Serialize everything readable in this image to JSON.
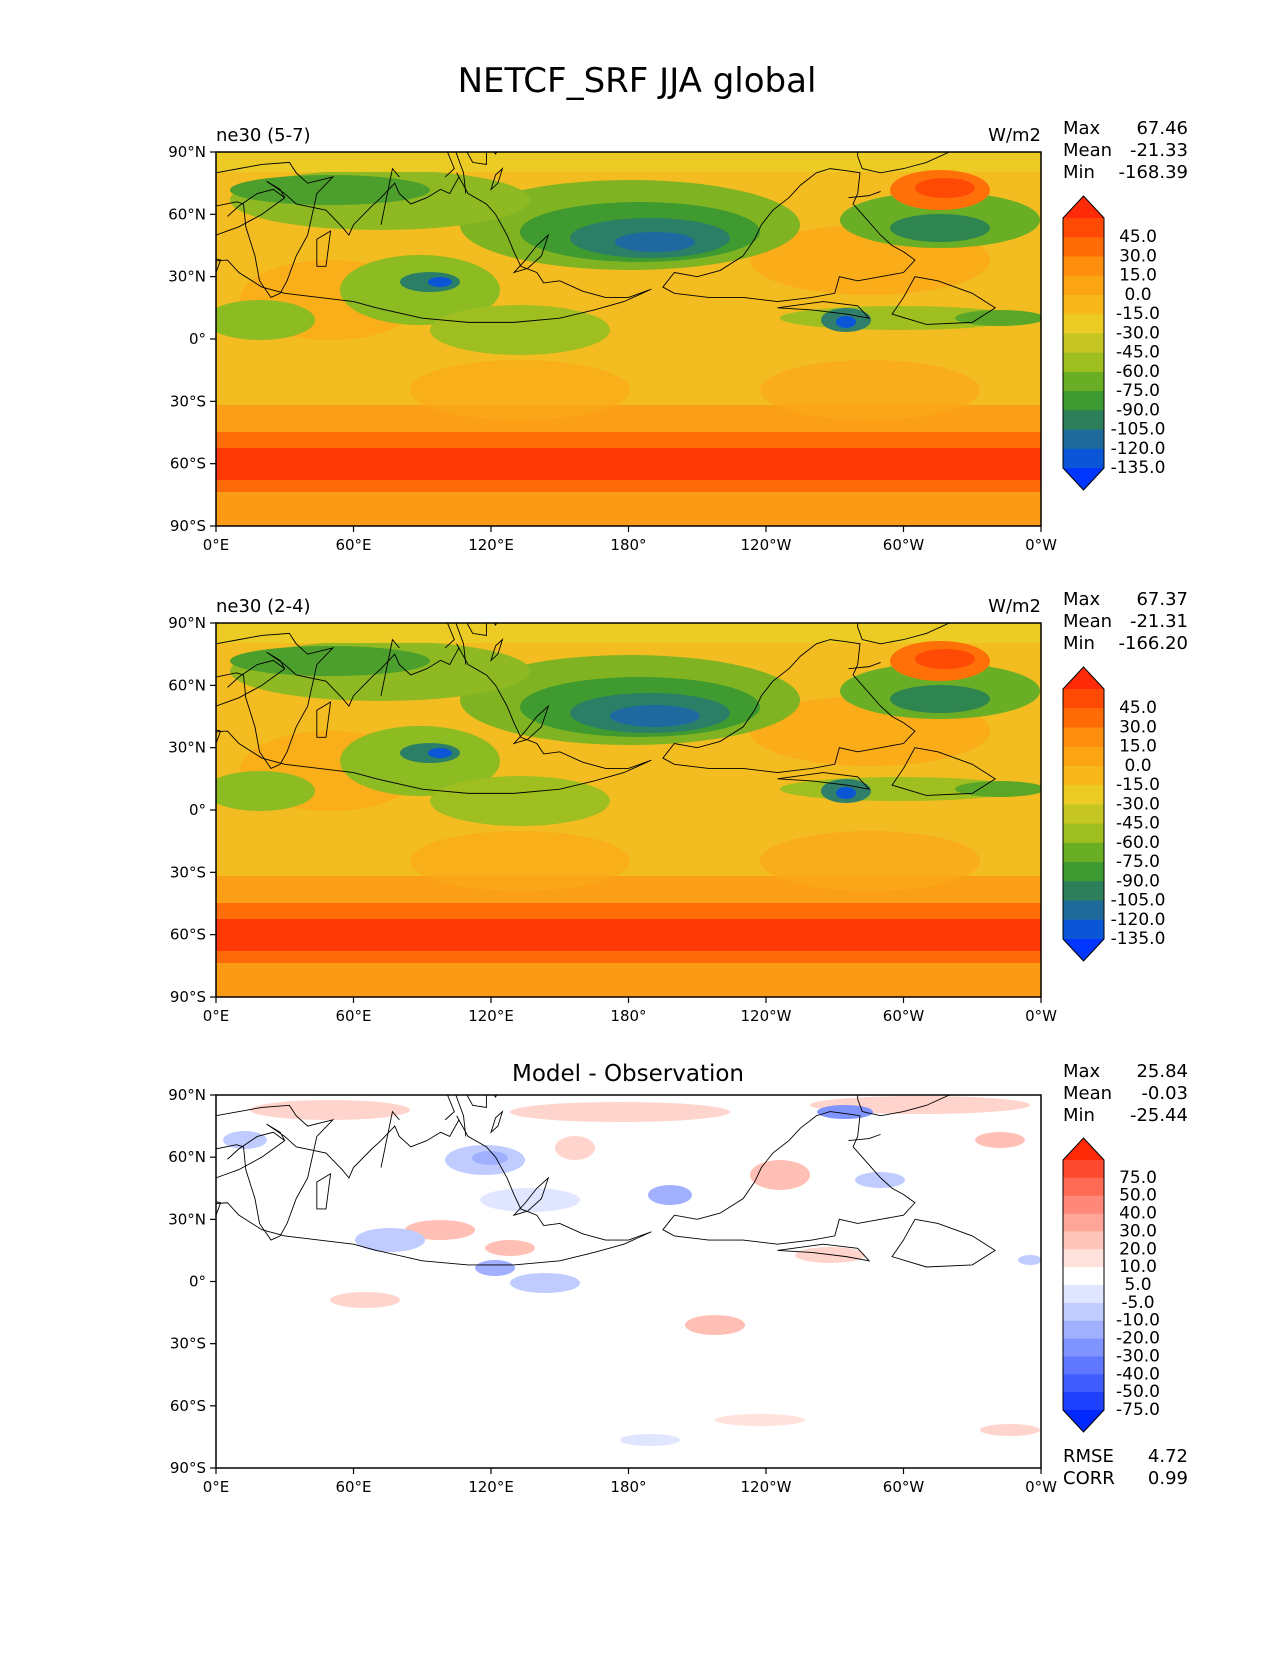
{
  "title": "NETCF_SRF JJA global",
  "lat_ticks": [
    "90°N",
    "60°N",
    "30°N",
    "0°",
    "30°S",
    "60°S",
    "90°S"
  ],
  "lon_ticks": [
    "0°E",
    "60°E",
    "120°E",
    "180°",
    "120°W",
    "60°W",
    "0°W"
  ],
  "stat_labels": {
    "max": "Max",
    "mean": "Mean",
    "min": "Min",
    "rmse": "RMSE",
    "corr": "CORR"
  },
  "panels": [
    {
      "title": "ne30 (5-7)",
      "units": "W/m2",
      "stats": {
        "max": "67.46",
        "mean": "-21.33",
        "min": "-168.39"
      },
      "colorbar": {
        "levels": [
          "45.0",
          "30.0",
          "15.0",
          "0.0",
          "-15.0",
          "-30.0",
          "-45.0",
          "-60.0",
          "-75.0",
          "-90.0",
          "-105.0",
          "-120.0",
          "-135.0"
        ],
        "colors": [
          "#ff2a08",
          "#ff4a05",
          "#ff6b06",
          "#ff8e0c",
          "#fba414",
          "#f8b81c",
          "#eccb24",
          "#c6c623",
          "#9fbf20",
          "#6aae25",
          "#3d9a30",
          "#2c7f5a",
          "#1f6a9a",
          "#0a56d6",
          "#0036ff"
        ]
      }
    },
    {
      "title": "ne30 (2-4)",
      "units": "W/m2",
      "stats": {
        "max": "67.37",
        "mean": "-21.31",
        "min": "-166.20"
      },
      "colorbar": {
        "levels": [
          "45.0",
          "30.0",
          "15.0",
          "0.0",
          "-15.0",
          "-30.0",
          "-45.0",
          "-60.0",
          "-75.0",
          "-90.0",
          "-105.0",
          "-120.0",
          "-135.0"
        ],
        "colors": [
          "#ff2a08",
          "#ff4a05",
          "#ff6b06",
          "#ff8e0c",
          "#fba414",
          "#f8b81c",
          "#eccb24",
          "#c6c623",
          "#9fbf20",
          "#6aae25",
          "#3d9a30",
          "#2c7f5a",
          "#1f6a9a",
          "#0a56d6",
          "#0036ff"
        ]
      }
    },
    {
      "title": "Model - Observation",
      "units": "",
      "stats": {
        "max": "25.84",
        "mean": "-0.03",
        "min": "-25.44",
        "rmse": "4.72",
        "corr": "0.99"
      },
      "colorbar": {
        "levels": [
          "75.0",
          "50.0",
          "40.0",
          "30.0",
          "20.0",
          "10.0",
          "5.0",
          "-5.0",
          "-10.0",
          "-20.0",
          "-30.0",
          "-40.0",
          "-50.0",
          "-75.0"
        ],
        "colors": [
          "#ff2a08",
          "#ff4a32",
          "#ff6a55",
          "#ff8878",
          "#ffa698",
          "#ffc4ba",
          "#ffe2dc",
          "#ffffff",
          "#e0e6ff",
          "#c0ccff",
          "#a0b0ff",
          "#8094ff",
          "#6078ff",
          "#3f5cff",
          "#1e40ff",
          "#0028ff"
        ]
      }
    }
  ]
}
